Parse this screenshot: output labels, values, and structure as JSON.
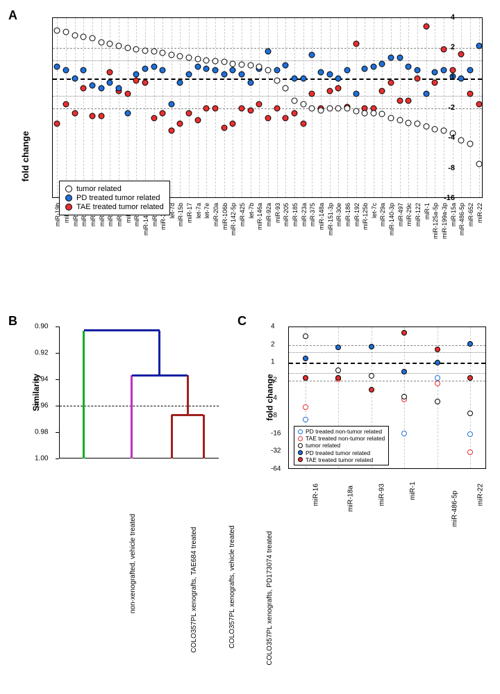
{
  "panelA": {
    "label": "A",
    "ylabel": "fold change",
    "yticks": [
      4,
      2,
      1,
      -2,
      -4,
      -8,
      -16
    ],
    "reflines": [
      1.5,
      1,
      0.67
    ],
    "refline_major": 1,
    "markers": {
      "tumor": {
        "fill": "#ffffff",
        "stroke": "#000000",
        "size": 9,
        "strokeW": 1.5
      },
      "pd": {
        "fill": "#2070d8",
        "stroke": "#000000",
        "size": 9,
        "strokeW": 0.8
      },
      "tae": {
        "fill": "#e83030",
        "stroke": "#000000",
        "size": 9,
        "strokeW": 0.8
      }
    },
    "legend": [
      {
        "key": "tumor",
        "label": "tumor related"
      },
      {
        "key": "pd",
        "label": "PD treated tumor related"
      },
      {
        "key": "tae",
        "label": "TAE treated tumor related"
      }
    ],
    "categories": [
      "miR-19b",
      "miR-16",
      "miR-19a",
      "miR-191",
      "miR-30b",
      "miR-215",
      "miR-150",
      "miR-195",
      "miR-25",
      "miR-132",
      "miR-140-5p",
      "miR-223",
      "miR-320a",
      "let-7d",
      "miR-15b",
      "miR-17",
      "let-7a",
      "let-7e",
      "miR-20a",
      "miR-106b",
      "miR-142-5p",
      "miR-425",
      "let-7b",
      "miR-146a",
      "miR-92a",
      "miR-93",
      "miR-205",
      "miR-185",
      "miR-23a",
      "miR-375",
      "miR-148a",
      "miR-151-3p",
      "miR-30e",
      "miR-186",
      "miR-192",
      "miR-125b",
      "let-7c",
      "miR-29a",
      "miR-140-3p",
      "miR-497",
      "miR-29c",
      "miR-122",
      "miR-1",
      "miR-125a-5p",
      "miR-199a-3p",
      "miR-15a",
      "miR-486-5p",
      "miR-652",
      "miR-22"
    ],
    "series": {
      "tumor": [
        3.0,
        2.9,
        2.7,
        2.6,
        2.5,
        2.3,
        2.2,
        2.1,
        2.0,
        1.95,
        1.9,
        1.85,
        1.8,
        1.7,
        1.65,
        1.6,
        1.55,
        1.5,
        1.48,
        1.45,
        1.4,
        1.38,
        1.35,
        1.3,
        1.2,
        0.95,
        0.8,
        0.6,
        0.55,
        0.5,
        0.48,
        0.5,
        0.5,
        0.5,
        0.47,
        0.45,
        0.45,
        0.44,
        0.4,
        0.38,
        0.36,
        0.35,
        0.33,
        0.31,
        0.3,
        0.28,
        0.24,
        0.22,
        0.14
      ],
      "pd": [
        1.3,
        1.2,
        1.0,
        1.2,
        0.85,
        0.8,
        0.9,
        0.8,
        0.45,
        1.1,
        1.25,
        1.3,
        1.2,
        0.55,
        0.9,
        1.1,
        1.3,
        1.25,
        1.2,
        1.1,
        1.2,
        1.1,
        0.9,
        1.25,
        1.85,
        1.2,
        1.35,
        1.0,
        1.0,
        1.7,
        1.15,
        1.1,
        1.0,
        1.2,
        0.7,
        1.25,
        1.3,
        1.4,
        1.6,
        1.6,
        1.3,
        1.2,
        0.7,
        1.15,
        1.2,
        1.05,
        1.0,
        1.2,
        2.1
      ],
      "tae": [
        0.35,
        0.55,
        0.45,
        0.8,
        0.42,
        0.42,
        1.15,
        0.75,
        0.7,
        0.95,
        0.9,
        0.4,
        0.45,
        0.3,
        0.35,
        0.45,
        0.38,
        0.5,
        0.5,
        0.32,
        0.35,
        0.5,
        0.48,
        0.55,
        0.4,
        0.5,
        0.4,
        0.45,
        0.35,
        0.7,
        0.5,
        0.75,
        0.8,
        0.52,
        2.2,
        0.5,
        0.5,
        0.75,
        0.9,
        0.6,
        0.6,
        1.0,
        3.3,
        0.9,
        1.95,
        1.2,
        1.75,
        0.7,
        0.55
      ]
    }
  },
  "panelB": {
    "label": "B",
    "ylabel": "Similarity",
    "yticks": [
      0.9,
      0.92,
      0.94,
      0.96,
      0.98,
      1.0
    ],
    "dashed_at": 0.96,
    "colors": {
      "top": "#1020a0",
      "left_leaf": "#10b020",
      "mid_leaf": "#c030c0",
      "right_group": "#a02020"
    },
    "leaves": [
      {
        "x": 0.15,
        "label": "non-xenografted,\nvehicle treated"
      },
      {
        "x": 0.45,
        "label": "COLO357PL xenografts,\nTAE684 treated"
      },
      {
        "x": 0.7,
        "label": "COLO357PL xenografts,\nvehicle treated"
      },
      {
        "x": 0.9,
        "label": "COLO357PL xenografts,\nPD173074 treated"
      }
    ],
    "joins": [
      {
        "a": 2,
        "b": 3,
        "y": 0.967,
        "color": "right_group"
      },
      {
        "a": 1,
        "bGroup": [
          2,
          3
        ],
        "y": 0.937,
        "color": "top"
      },
      {
        "a": 0,
        "bGroup": [
          1,
          2,
          3
        ],
        "y": 0.903,
        "color": "top"
      }
    ]
  },
  "panelC": {
    "label": "C",
    "ylabel": "fold change",
    "yticks": [
      4,
      2,
      1,
      -2,
      -4,
      -8,
      -16,
      -32,
      -64
    ],
    "categories": [
      "miR-16",
      "miR-18a",
      "miR-93",
      "miR-1",
      "miR-486-5p",
      "miR-22"
    ],
    "markers": {
      "pd_nt": {
        "fill": "#ffffff",
        "stroke": "#2070d8",
        "size": 8,
        "strokeW": 1.5
      },
      "tae_nt": {
        "fill": "#ffffff",
        "stroke": "#e83030",
        "size": 8,
        "strokeW": 1.5
      },
      "tumor": {
        "fill": "#ffffff",
        "stroke": "#000000",
        "size": 8,
        "strokeW": 1.5
      },
      "pd_t": {
        "fill": "#2070d8",
        "stroke": "#000000",
        "size": 8,
        "strokeW": 0.8
      },
      "tae_t": {
        "fill": "#e83030",
        "stroke": "#000000",
        "size": 8,
        "strokeW": 0.8
      }
    },
    "legend": [
      {
        "key": "pd_nt",
        "label": "PD treated non-tumor related"
      },
      {
        "key": "tae_nt",
        "label": "TAE treated non-tumor related"
      },
      {
        "key": "tumor",
        "label": "tumor related"
      },
      {
        "key": "pd_t",
        "label": "PD treated tumor related"
      },
      {
        "key": "tae_t",
        "label": "TAE treated tumor related"
      }
    ],
    "series": {
      "tumor": [
        2.8,
        0.75,
        0.6,
        0.27,
        0.22,
        0.14
      ],
      "pd_t": [
        1.2,
        1.85,
        1.9,
        0.7,
        1.0,
        2.1
      ],
      "tae_t": [
        0.55,
        0.55,
        0.35,
        3.2,
        1.7,
        0.55
      ],
      "pd_nt": [
        0.11,
        0.55,
        0.065,
        0.063,
        0.55,
        0.062
      ],
      "tae_nt": [
        0.18,
        0.52,
        0.062,
        0.24,
        0.45,
        0.031
      ]
    }
  }
}
